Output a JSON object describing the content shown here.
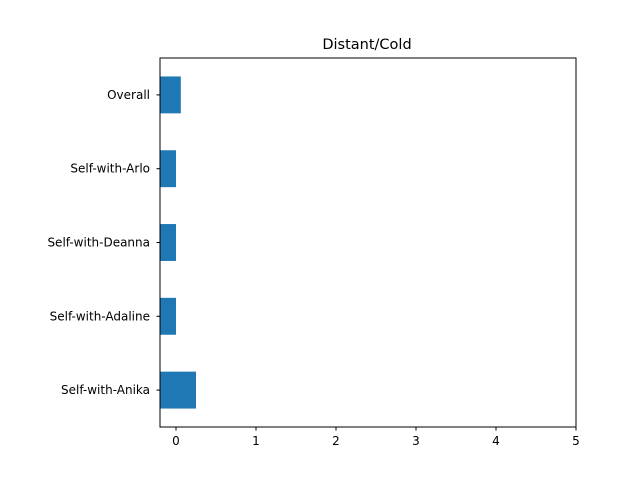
{
  "chart_data": {
    "type": "bar",
    "orientation": "horizontal",
    "title": "Distant/Cold",
    "xlabel": "",
    "ylabel": "",
    "categories": [
      "Overall",
      "Self-with-Arlo",
      "Self-with-Deanna",
      "Self-with-Adaline",
      "Self-with-Anika"
    ],
    "values": [
      0.06,
      0.0,
      0.0,
      0.0,
      0.25
    ],
    "xlim": [
      -0.2,
      5
    ],
    "xticks": [
      "0",
      "1",
      "2",
      "3",
      "4",
      "5"
    ],
    "grid": false,
    "legend": "none",
    "bar_color": "#1f77b4"
  }
}
